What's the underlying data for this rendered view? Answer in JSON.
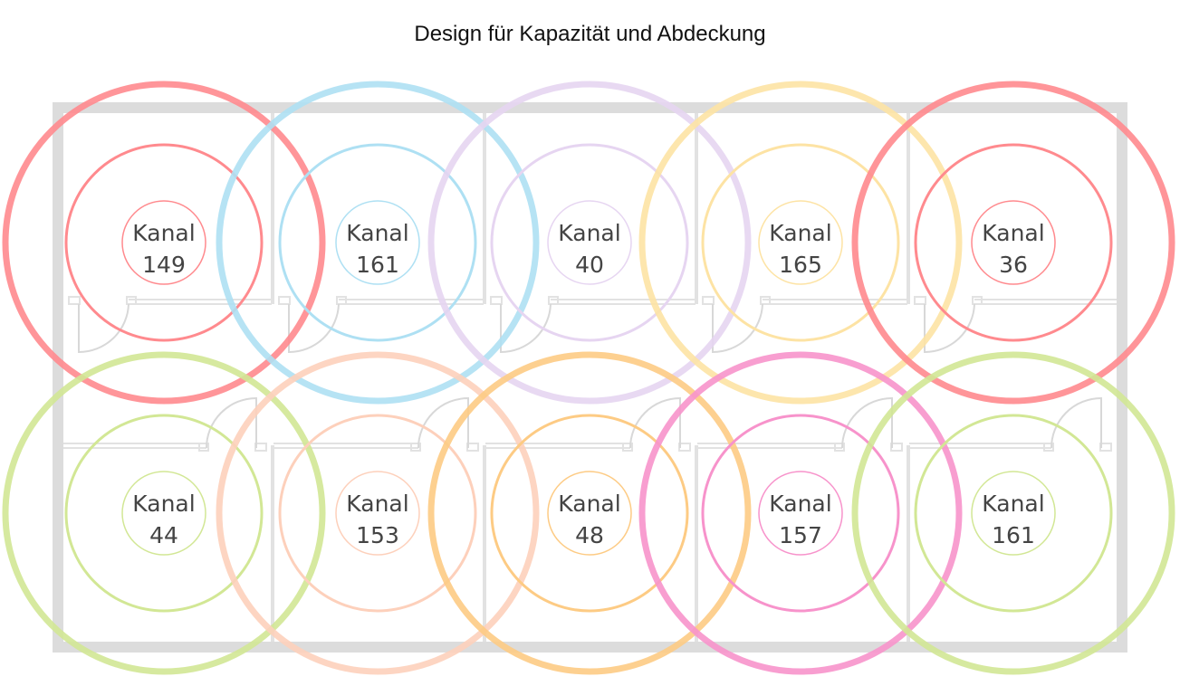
{
  "title": "Design für Kapazität und Abdeckung",
  "access_points": [
    {
      "row": 1,
      "col": 1,
      "label": "Kanal",
      "channel": "149",
      "color": "#ff8a8e"
    },
    {
      "row": 1,
      "col": 2,
      "label": "Kanal",
      "channel": "161",
      "color": "#aee0f3"
    },
    {
      "row": 1,
      "col": 3,
      "label": "Kanal",
      "channel": "40",
      "color": "#e6d5f1"
    },
    {
      "row": 1,
      "col": 4,
      "label": "Kanal",
      "channel": "165",
      "color": "#fde3a4"
    },
    {
      "row": 1,
      "col": 5,
      "label": "Kanal",
      "channel": "36",
      "color": "#ff8a8e"
    },
    {
      "row": 2,
      "col": 1,
      "label": "Kanal",
      "channel": "44",
      "color": "#d2e795"
    },
    {
      "row": 2,
      "col": 2,
      "label": "Kanal",
      "channel": "153",
      "color": "#fdd0bb"
    },
    {
      "row": 2,
      "col": 3,
      "label": "Kanal",
      "channel": "48",
      "color": "#fdcb84"
    },
    {
      "row": 2,
      "col": 4,
      "label": "Kanal",
      "channel": "157",
      "color": "#f793cb"
    },
    {
      "row": 2,
      "col": 5,
      "label": "Kanal",
      "channel": "161",
      "color": "#d2e795"
    }
  ],
  "colors": {
    "wall": "#dcdcdc",
    "inner_wall": "#e2e2e2",
    "text": "#444444"
  }
}
